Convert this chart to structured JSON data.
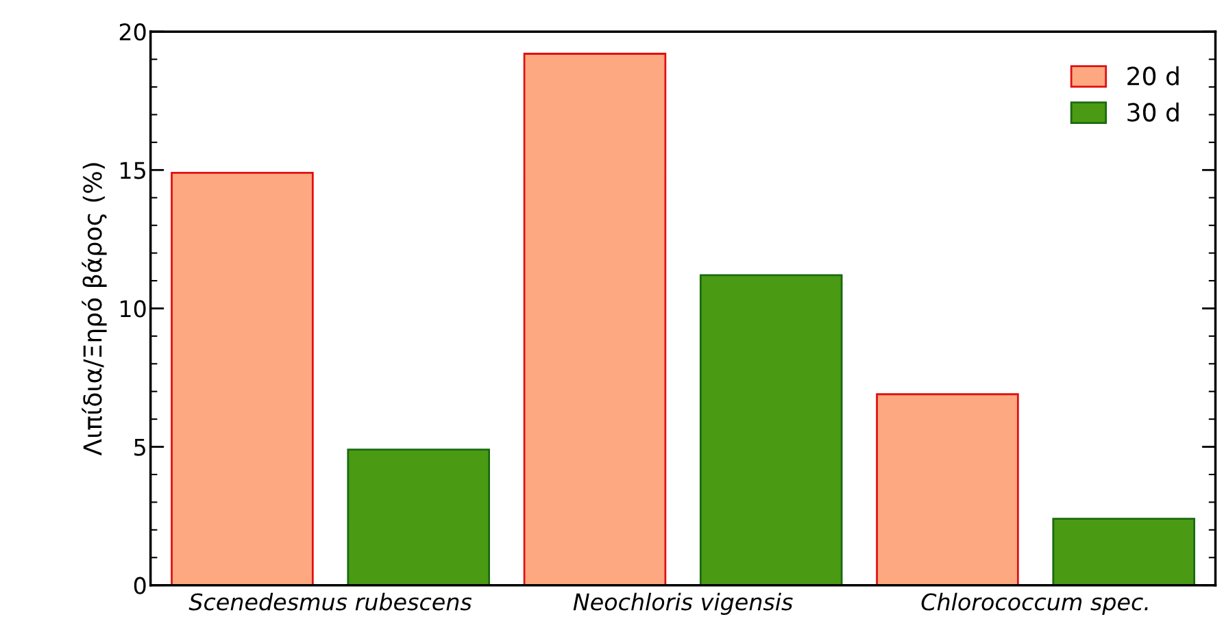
{
  "chart_data": {
    "type": "bar",
    "ylabel": "Λιπίδια/Ξηρό βάρος (%)",
    "categories": [
      "Scenedesmus rubescens",
      "Neochloris vigensis",
      "Chlorococcum spec."
    ],
    "series": [
      {
        "name": "20 d",
        "color": "#fda880",
        "values": [
          14.9,
          19.2,
          6.9
        ]
      },
      {
        "name": "30 d",
        "color": "#4a9a14",
        "values": [
          4.9,
          11.2,
          2.4
        ]
      }
    ],
    "ylim": [
      0,
      20
    ],
    "yticks": [
      0,
      5,
      10,
      15,
      20
    ],
    "grid": false,
    "legend": "top right"
  }
}
